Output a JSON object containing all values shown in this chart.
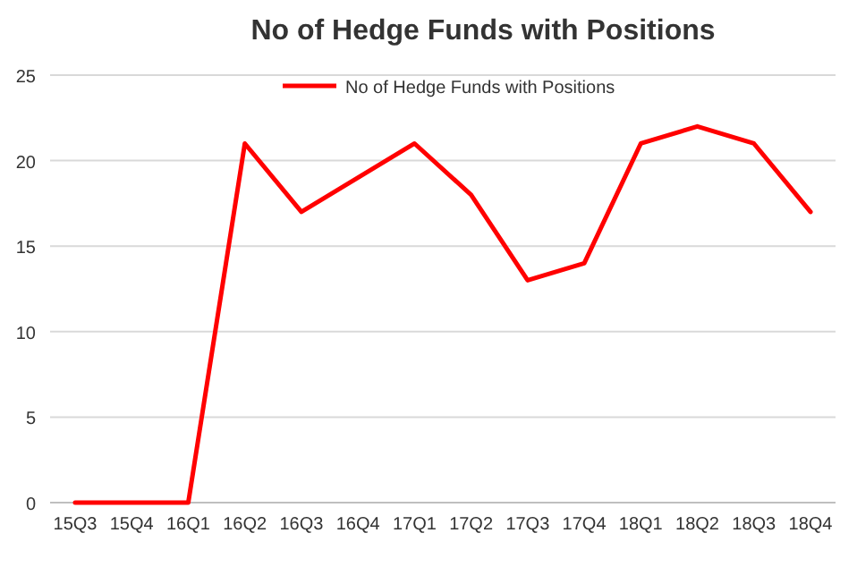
{
  "chart_data": {
    "type": "line",
    "title": "No of Hedge Funds with Positions",
    "categories": [
      "15Q3",
      "15Q4",
      "16Q1",
      "16Q2",
      "16Q3",
      "16Q4",
      "17Q1",
      "17Q2",
      "17Q3",
      "17Q4",
      "18Q1",
      "18Q2",
      "18Q3",
      "18Q4"
    ],
    "series": [
      {
        "name": "No of Hedge Funds with Positions",
        "color": "#ff0000",
        "values": [
          0,
          0,
          0,
          21,
          17,
          19,
          21,
          18,
          13,
          14,
          21,
          22,
          21,
          17
        ]
      }
    ],
    "ylim": [
      0,
      25
    ],
    "yticks": [
      0,
      5,
      10,
      15,
      20,
      25
    ],
    "grid": "y",
    "legend": "top",
    "marker": "none",
    "line_style": "solid"
  }
}
